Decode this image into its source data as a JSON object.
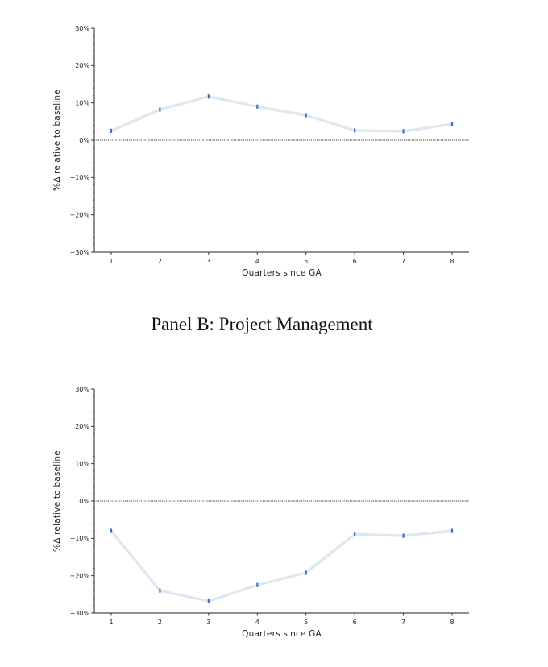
{
  "panel_b_title": "Panel B: Project Management",
  "colors": {
    "line": "#dde7f2",
    "marker": "#3a76c4",
    "zero_line": "#333333",
    "axis": "#222222"
  },
  "chart_data": [
    {
      "type": "line",
      "title": "",
      "xlabel": "Quarters since GA",
      "ylabel": "%Δ relative to baseline",
      "x": [
        1,
        2,
        3,
        4,
        5,
        6,
        7,
        8
      ],
      "x_tick_labels": [
        "1",
        "2",
        "3",
        "4",
        "5",
        "6",
        "7",
        "8"
      ],
      "series": [
        {
          "values": [
            2.5,
            8.2,
            11.7,
            9.0,
            6.7,
            2.6,
            2.4,
            4.3
          ]
        }
      ],
      "ylim": [
        -30,
        30
      ],
      "y_ticks": [
        -30,
        -20,
        -10,
        0,
        10,
        20,
        30
      ],
      "y_tick_labels": [
        "−30%",
        "−20%",
        "−10%",
        "0%",
        "10%",
        "20%",
        "30%"
      ],
      "reference_line": 0,
      "grid": false
    },
    {
      "type": "line",
      "title": "",
      "xlabel": "Quarters since GA",
      "ylabel": "%Δ relative to baseline",
      "x": [
        1,
        2,
        3,
        4,
        5,
        6,
        7,
        8
      ],
      "x_tick_labels": [
        "1",
        "2",
        "3",
        "4",
        "5",
        "6",
        "7",
        "8"
      ],
      "series": [
        {
          "values": [
            -8.0,
            -24.0,
            -26.8,
            -22.5,
            -19.2,
            -8.9,
            -9.3,
            -8.0
          ]
        }
      ],
      "ylim": [
        -30,
        30
      ],
      "y_ticks": [
        -30,
        -20,
        -10,
        0,
        10,
        20,
        30
      ],
      "y_tick_labels": [
        "−30%",
        "−20%",
        "−10%",
        "0%",
        "10%",
        "20%",
        "30%"
      ],
      "reference_line": 0,
      "grid": false
    }
  ]
}
